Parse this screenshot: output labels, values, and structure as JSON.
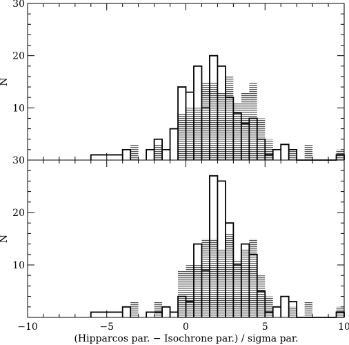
{
  "chart_data": {
    "type": "histogram",
    "layout": "two stacked panels sharing x axis",
    "grid": false,
    "legend": "none",
    "xlabel": "(Hipparcos par. − Isochrone par.) / sigma par.",
    "xlim": [
      -10,
      10
    ],
    "x_ticks": [
      -10,
      -5,
      0,
      5,
      10
    ],
    "x_tick_labels": [
      "−10",
      "−5",
      "0",
      "5",
      "10"
    ],
    "bin_width": 0.5,
    "colors": {
      "outline": "#000000",
      "hatch": "#555555",
      "background": "#ffffff"
    },
    "panels": [
      {
        "position": "top",
        "ylabel": "N",
        "ylim": [
          0,
          30
        ],
        "y_ticks": [
          10,
          20,
          30
        ],
        "y_tick_labels": [
          "10",
          "20",
          "30"
        ],
        "series": [
          {
            "style": "outline",
            "bins": [
              [
                -6.0,
                -4.0,
                1
              ],
              [
                -4.0,
                -3.5,
                2
              ],
              [
                -2.5,
                -2.0,
                2
              ],
              [
                -2.0,
                -1.5,
                4
              ],
              [
                -1.5,
                -1.0,
                2
              ],
              [
                -1.0,
                -0.5,
                6
              ],
              [
                -0.5,
                0.0,
                14
              ],
              [
                0.0,
                0.5,
                13
              ],
              [
                0.5,
                1.0,
                18
              ],
              [
                1.0,
                1.5,
                10
              ],
              [
                1.5,
                2.0,
                20
              ],
              [
                2.0,
                2.5,
                18
              ],
              [
                2.5,
                3.0,
                12
              ],
              [
                3.0,
                3.5,
                9
              ],
              [
                3.5,
                4.0,
                7
              ],
              [
                4.0,
                4.5,
                8
              ],
              [
                4.5,
                5.0,
                4
              ],
              [
                5.0,
                5.5,
                1
              ],
              [
                5.5,
                6.0,
                2
              ],
              [
                6.0,
                6.5,
                3
              ],
              [
                6.5,
                7.0,
                2
              ],
              [
                7.0,
                9.5,
                0
              ],
              [
                9.5,
                10.0,
                1
              ]
            ]
          },
          {
            "style": "hatched",
            "bins": [
              [
                -3.5,
                -3.0,
                3
              ],
              [
                -2.0,
                -1.5,
                3
              ],
              [
                -0.5,
                0.0,
                9
              ],
              [
                0.0,
                1.0,
                10
              ],
              [
                1.0,
                1.5,
                15
              ],
              [
                1.5,
                2.0,
                15
              ],
              [
                2.0,
                2.5,
                13
              ],
              [
                2.5,
                3.0,
                16
              ],
              [
                3.0,
                3.5,
                11
              ],
              [
                3.5,
                4.0,
                13
              ],
              [
                4.0,
                4.5,
                15
              ],
              [
                4.5,
                5.0,
                8
              ],
              [
                5.0,
                5.5,
                4
              ],
              [
                6.5,
                7.0,
                2
              ],
              [
                7.5,
                8.0,
                3
              ],
              [
                9.5,
                10.0,
                2
              ]
            ]
          }
        ]
      },
      {
        "position": "bottom",
        "ylabel": "N",
        "ylim": [
          0,
          30
        ],
        "y_ticks": [
          10,
          20,
          30
        ],
        "y_tick_labels": [
          "10",
          "20",
          "30"
        ],
        "series": [
          {
            "style": "outline",
            "bins": [
              [
                -6.0,
                -4.0,
                1
              ],
              [
                -4.0,
                -3.5,
                2
              ],
              [
                -2.5,
                -1.5,
                1
              ],
              [
                -1.5,
                -1.0,
                2
              ],
              [
                -1.0,
                -0.5,
                1
              ],
              [
                -0.5,
                0.0,
                4
              ],
              [
                0.0,
                0.5,
                3
              ],
              [
                0.5,
                1.0,
                14
              ],
              [
                1.0,
                1.5,
                9
              ],
              [
                1.5,
                2.0,
                27
              ],
              [
                2.0,
                2.5,
                26
              ],
              [
                2.5,
                3.0,
                18
              ],
              [
                3.0,
                3.5,
                10
              ],
              [
                3.5,
                4.0,
                14
              ],
              [
                4.0,
                4.5,
                12
              ],
              [
                4.5,
                5.0,
                5
              ],
              [
                5.0,
                5.5,
                1
              ],
              [
                5.5,
                6.0,
                2
              ],
              [
                6.0,
                6.5,
                4
              ],
              [
                6.5,
                7.0,
                3
              ],
              [
                7.0,
                9.5,
                0
              ],
              [
                9.5,
                10.0,
                1
              ]
            ]
          },
          {
            "style": "hatched",
            "bins": [
              [
                -3.5,
                -3.0,
                3
              ],
              [
                -2.0,
                -1.5,
                3
              ],
              [
                -0.5,
                0.0,
                9
              ],
              [
                0.0,
                1.0,
                10
              ],
              [
                1.0,
                1.5,
                15
              ],
              [
                1.5,
                2.0,
                15
              ],
              [
                2.0,
                2.5,
                13
              ],
              [
                2.5,
                3.0,
                16
              ],
              [
                3.0,
                3.5,
                11
              ],
              [
                3.5,
                4.0,
                13
              ],
              [
                4.0,
                4.5,
                15
              ],
              [
                4.5,
                5.0,
                8
              ],
              [
                5.0,
                5.5,
                4
              ],
              [
                6.5,
                7.0,
                2
              ],
              [
                7.5,
                8.0,
                3
              ],
              [
                9.5,
                10.0,
                2
              ]
            ]
          }
        ]
      }
    ]
  }
}
